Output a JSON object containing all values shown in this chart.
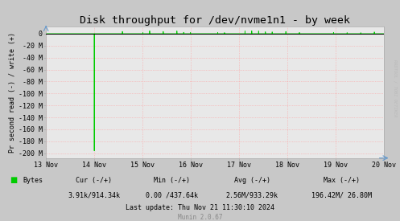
{
  "title": "Disk throughput for /dev/nvme1n1 - by week",
  "ylabel": "Pr second read (-) / write (+)",
  "xlabel_ticks": [
    "13 Nov",
    "14 Nov",
    "15 Nov",
    "16 Nov",
    "17 Nov",
    "18 Nov",
    "19 Nov",
    "20 Nov"
  ],
  "ytick_labels": [
    "0",
    "-20 M",
    "-40 M",
    "-60 M",
    "-80 M",
    "-100 M",
    "-120 M",
    "-140 M",
    "-160 M",
    "-180 M",
    "-200 M"
  ],
  "ytick_vals": [
    0,
    -20,
    -40,
    -60,
    -80,
    -100,
    -120,
    -140,
    -160,
    -180,
    -200
  ],
  "ylim": [
    -208,
    12
  ],
  "xlim_days": [
    0,
    7
  ],
  "spike_x": 1.0,
  "spike_y": -196,
  "line_color": "#00cc00",
  "bg_color": "#c8c8c8",
  "plot_bg_color": "#e8e8e8",
  "grid_color": "#ff9999",
  "border_color": "#aaaaaa",
  "legend_label": "Bytes",
  "legend_color": "#00cc00",
  "footer_cur_hdr": "Cur (-/+)",
  "footer_cur_val": "3.91k/914.34k",
  "footer_min_hdr": "Min (-/+)",
  "footer_min_val": "0.00 /437.64k",
  "footer_avg_hdr": "Avg (-/+)",
  "footer_avg_val": "2.56M/933.29k",
  "footer_max_hdr": "Max (-/+)",
  "footer_max_val": "196.42M/ 26.80M",
  "footer_update": "Last update: Thu Nov 21 11:30:10 2024",
  "footer_munin": "Munin 2.0.67",
  "watermark": "RRDTOOL / TOBI OETIKER",
  "title_fontsize": 9.5,
  "axis_fontsize": 6,
  "footer_fontsize": 6,
  "munin_fontsize": 5.5,
  "watermark_fontsize": 4
}
